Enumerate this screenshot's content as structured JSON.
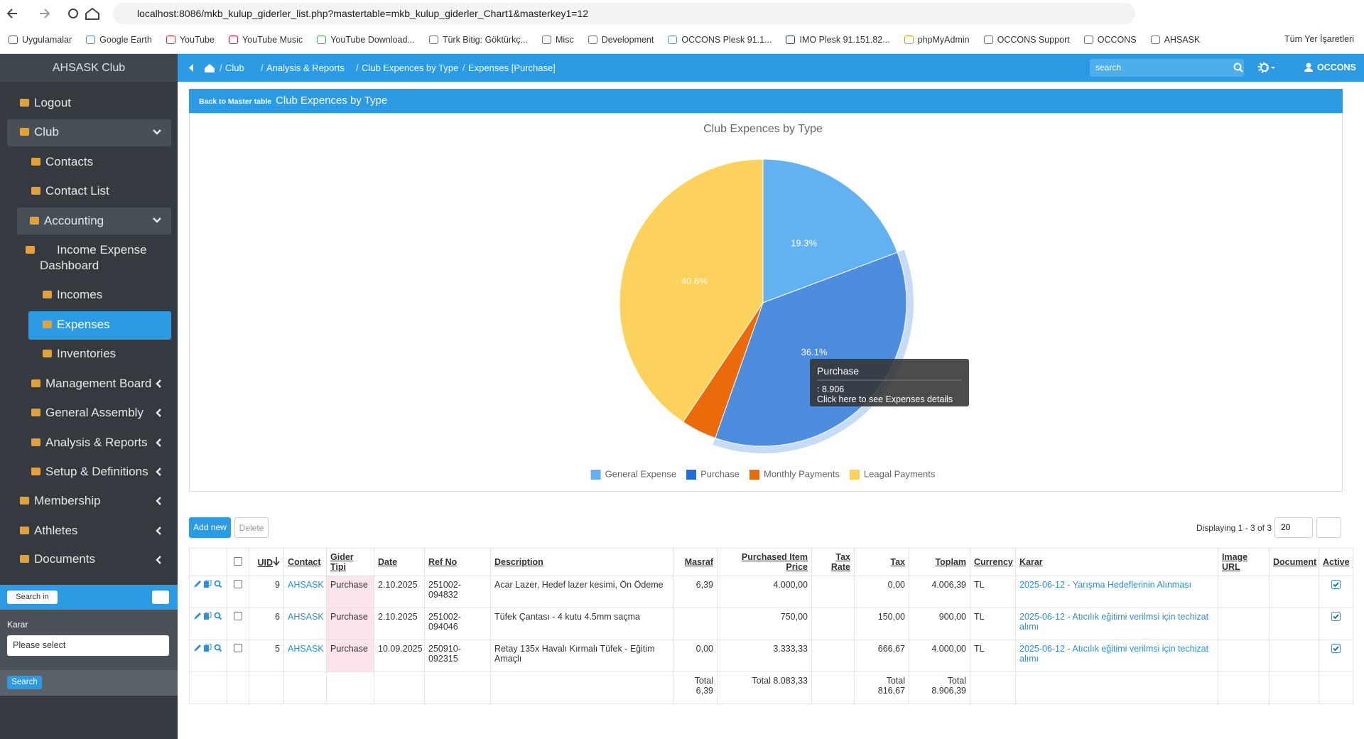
{
  "browser": {
    "url": "localhost:8086/mkb_kulup_giderler_list.php?mastertable=mkb_kulup_giderler_Chart1&masterkey1=12",
    "bookmarks": [
      "Uygulamalar",
      "Google Earth",
      "YouTube",
      "YouTube Music",
      "YouTube Download...",
      "Türk Bitig: Göktürkç...",
      "Misc",
      "Development",
      "OCCONS Plesk 91.1...",
      "IMO Plesk 91.151.82...",
      "phpMyAdmin",
      "OCCONS Support",
      "OCCONS",
      "AHSASK"
    ],
    "all_bookmarks": "Tüm Yer İşaretleri"
  },
  "sidebar": {
    "brand": "AHSASK Club",
    "menu": [
      "Logout",
      "Club",
      "Contacts",
      "Contact List",
      "Accounting",
      "Income Expense Dashboard",
      "Incomes",
      "Expenses",
      "Inventories",
      "Management Board",
      "General Assembly",
      "Analysis & Reports",
      "Setup & Definitions",
      "Membership",
      "Athletes",
      "Documents"
    ],
    "search_in": "Search in",
    "field_label": "Karar",
    "select_placeholder": "Please select",
    "search_button": "Search"
  },
  "topnav": {
    "breadcrumbs": [
      "Club",
      "Analysis & Reports",
      "Club Expences by Type",
      "Expenses [Purchase]"
    ],
    "search_placeholder": "search",
    "user": "OCCONS"
  },
  "panel": {
    "back": "Back to Master table",
    "title": "Club Expences by Type"
  },
  "chart_data": {
    "type": "pie",
    "title": "Club Expences by Type",
    "categories": [
      "General Expense",
      "Purchase",
      "Monthly Payments",
      "Leagal Payments"
    ],
    "values": [
      19.3,
      36.1,
      4.0,
      40.6
    ],
    "value_labels": [
      "19.3%",
      "36.1%",
      null,
      "40.6%"
    ],
    "colors": [
      "#62b1f1",
      "#1f6fd6",
      "#ea6a0c",
      "#fdd25c"
    ],
    "legend": "bottom"
  },
  "tooltip": {
    "title": "Purchase",
    "value": ": 8.906",
    "hint": "Click here to see Expenses details"
  },
  "list": {
    "add": "Add new",
    "delete": "Delete",
    "displaying": "Displaying 1 - 3 of 3",
    "page_size": "20",
    "headers": [
      "UID",
      "Contact",
      "Gider Tipi",
      "Date",
      "Ref No",
      "Description",
      "Masraf",
      "Purchased Item Price",
      "Tax Rate",
      "Tax",
      "Toplam",
      "Currency",
      "Karar",
      "Image URL",
      "Document",
      "Active"
    ],
    "rows": [
      {
        "uid": "9",
        "contact": "AHSASK",
        "type": "Purchase",
        "date": "2.10.2025",
        "ref_no": "251002-094832",
        "description": "Acar Lazer, Hedef lazer kesimi, Ön Ödeme",
        "masraf": "6,39",
        "price": "4.000,00",
        "tax": "0,00",
        "toplam": "4.006,39",
        "currency": "TL",
        "karar": "2025-06-12 - Yarışma Hedeflerinin Alınması"
      },
      {
        "uid": "6",
        "contact": "AHSASK",
        "type": "Purchase",
        "date": "2.10.2025",
        "ref_no": "251002-094046",
        "description": "Tüfek Çantası - 4 kutu 4.5mm saçma",
        "price": "750,00",
        "tax": "150,00",
        "toplam": "900,00",
        "currency": "TL",
        "karar": "2025-06-12 - Atıcılık eğitimi verilmsi için techizat alımı"
      },
      {
        "uid": "5",
        "contact": "AHSASK",
        "type": "Purchase",
        "date": "10.09.2025",
        "ref_no": "250910-092315",
        "description": "Retay 135x Havalı Kırmalı Tüfek - Eğitim Amaçlı",
        "masraf": "0,00",
        "price": "3.333,33",
        "tax": "666,67",
        "toplam": "4.000,00",
        "currency": "TL",
        "karar": "2025-06-12 - Atıcılık eğitimi verilmsi için techizat alımı"
      }
    ],
    "totals": {
      "masraf": "Total 6,39",
      "price": "Total 8.083,33",
      "tax": "Total 816,67",
      "toplam": "Total 8.906,39"
    }
  }
}
